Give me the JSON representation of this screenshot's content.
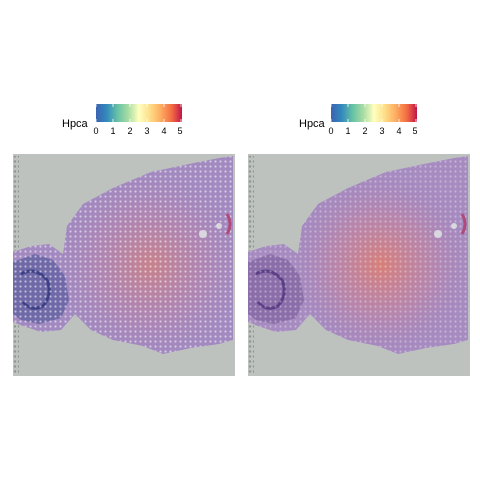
{
  "panels": [
    {
      "gene_label": "Hpca",
      "legend_ticks": [
        "0",
        "1",
        "2",
        "3",
        "4",
        "5"
      ],
      "colorscale": [
        "#5E4FA2",
        "#3288BD",
        "#66C2A5",
        "#ABDDA4",
        "#E6F598",
        "#FFFFBF",
        "#FEE08B",
        "#FDAE61",
        "#F46D43",
        "#D53E4F",
        "#9E0142"
      ]
    },
    {
      "gene_label": "Hpca",
      "legend_ticks": [
        "0",
        "1",
        "2",
        "3",
        "4",
        "5"
      ],
      "colorscale": [
        "#5E4FA2",
        "#3288BD",
        "#66C2A5",
        "#ABDDA4",
        "#E6F598",
        "#FFFFBF",
        "#FEE08B",
        "#FDAE61",
        "#F46D43",
        "#D53E4F",
        "#9E0142"
      ]
    }
  ]
}
